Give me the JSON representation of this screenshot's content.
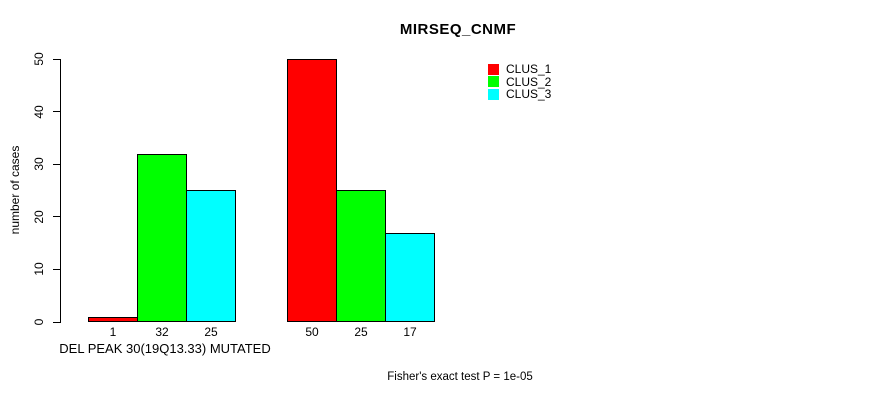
{
  "chart_data": {
    "type": "bar",
    "title": "MIRSEQ_CNMF",
    "xlabel": "DEL PEAK 30(19Q13.33) MUTATED",
    "ylabel": "number of cases",
    "annotation": "Fisher's exact test P = 1e-05",
    "ylim": [
      0,
      50
    ],
    "yticks": [
      0,
      10,
      20,
      30,
      40,
      50
    ],
    "grid": false,
    "legend_position": "top-right-inside",
    "groups_count": 2,
    "series": [
      {
        "name": "CLUS_1",
        "color": "#FF0000",
        "values": [
          1,
          50
        ]
      },
      {
        "name": "CLUS_2",
        "color": "#00FF00",
        "values": [
          32,
          25
        ]
      },
      {
        "name": "CLUS_3",
        "color": "#00FFFF",
        "values": [
          25,
          17
        ]
      }
    ],
    "bar_labels": [
      [
        "1",
        "32",
        "25"
      ],
      [
        "50",
        "25",
        "17"
      ]
    ],
    "axis_color": "#000000",
    "background_color": "#FFFFFF"
  }
}
